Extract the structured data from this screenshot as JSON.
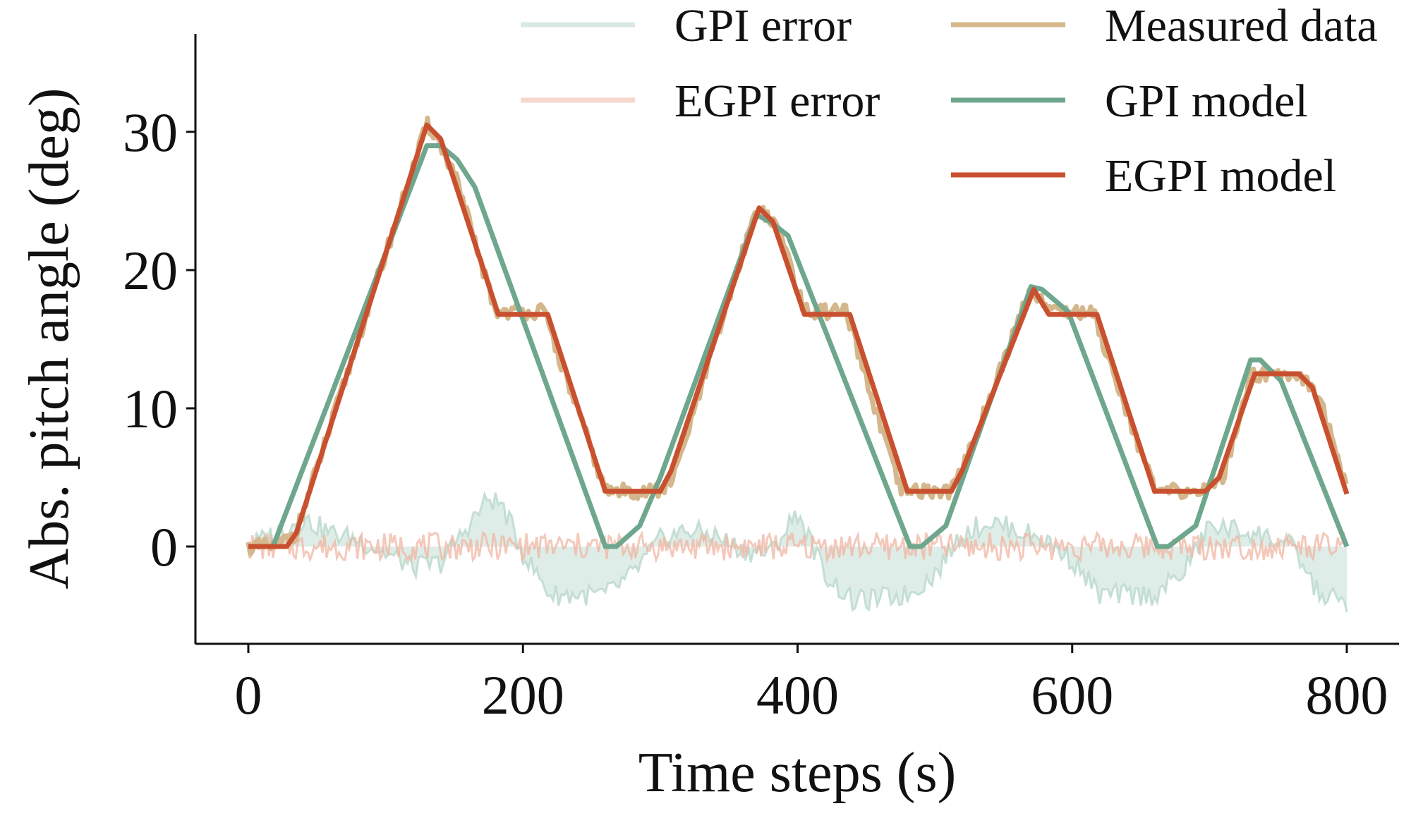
{
  "chart_data": {
    "type": "line",
    "title": "",
    "xlabel": "Time steps (s)",
    "ylabel": "Abs. pitch angle (deg)",
    "xlim": [
      -40,
      840
    ],
    "ylim": [
      -7,
      37
    ],
    "xticks": [
      0,
      200,
      400,
      600,
      800
    ],
    "yticks": [
      0,
      10,
      20,
      30
    ],
    "grid": false,
    "legend_position": "top-right, two columns",
    "series": [
      {
        "name": "Measured data",
        "kind": "line",
        "color": "#d4b78c",
        "x": [
          0,
          20,
          35,
          130,
          135,
          150,
          180,
          215,
          260,
          300,
          310,
          370,
          378,
          390,
          405,
          435,
          475,
          510,
          520,
          570,
          580,
          590,
          615,
          660,
          695,
          710,
          730,
          765,
          780,
          800
        ],
        "y": [
          0,
          0,
          1,
          30.5,
          30,
          27,
          17,
          17,
          4,
          4,
          5,
          24.5,
          24,
          22,
          17,
          17,
          4,
          4,
          5.5,
          18.7,
          17.5,
          17,
          17,
          4,
          4,
          5,
          12.5,
          12.5,
          11,
          4
        ]
      },
      {
        "name": "GPI model",
        "kind": "line",
        "color": "#6fa78e",
        "x": [
          0,
          18,
          130,
          140,
          152,
          165,
          260,
          268,
          285,
          300,
          370,
          380,
          393,
          482,
          490,
          508,
          570,
          578,
          597,
          662,
          670,
          690,
          730,
          737,
          752,
          800
        ],
        "y": [
          0,
          0,
          29,
          29,
          28,
          26,
          0,
          0,
          1.5,
          5,
          24,
          23.5,
          22.5,
          0,
          0,
          1.5,
          18.8,
          18.6,
          17,
          0,
          0,
          1.5,
          13.5,
          13.5,
          12,
          0
        ]
      },
      {
        "name": "EGPI model",
        "kind": "line",
        "color": "#c9502f",
        "x": [
          0,
          28,
          35,
          130,
          140,
          182,
          218,
          260,
          300,
          308,
          372,
          382,
          405,
          438,
          480,
          512,
          520,
          572,
          583,
          618,
          660,
          697,
          707,
          733,
          765,
          775,
          800
        ],
        "y": [
          0,
          0,
          1,
          30.5,
          29.5,
          16.8,
          16.8,
          4,
          4,
          5.5,
          24.5,
          23.5,
          16.8,
          16.8,
          4,
          4,
          5.5,
          18.6,
          16.8,
          16.8,
          4,
          4,
          5,
          12.5,
          12.5,
          11.5,
          3.8
        ]
      },
      {
        "name": "GPI error",
        "kind": "band",
        "color": "#b9d8cb",
        "x": [
          0,
          20,
          40,
          60,
          80,
          100,
          120,
          140,
          160,
          175,
          185,
          200,
          220,
          260,
          280,
          300,
          320,
          340,
          360,
          380,
          400,
          420,
          440,
          480,
          500,
          520,
          540,
          560,
          580,
          600,
          620,
          660,
          680,
          700,
          720,
          740,
          760,
          780,
          800
        ],
        "y": [
          0,
          1,
          2,
          1,
          0.5,
          -0.5,
          -1.5,
          -1.2,
          1.5,
          3.5,
          3,
          -0.5,
          -3.5,
          -3.5,
          -2,
          0.5,
          1.2,
          0.8,
          -0.3,
          -0.5,
          2.5,
          -2,
          -4,
          -3.5,
          -2,
          1,
          1.8,
          1.2,
          0.5,
          -1,
          -3.5,
          -3.5,
          -2,
          1.5,
          1.2,
          0.8,
          0,
          -3.5,
          -4
        ]
      },
      {
        "name": "EGPI error",
        "kind": "band",
        "color": "#f0b5a3",
        "x": [
          0,
          100,
          200,
          300,
          400,
          500,
          600,
          700,
          800
        ],
        "y": [
          0,
          0,
          0,
          0,
          0,
          0,
          0,
          0,
          0
        ],
        "amplitude": 1
      }
    ]
  }
}
